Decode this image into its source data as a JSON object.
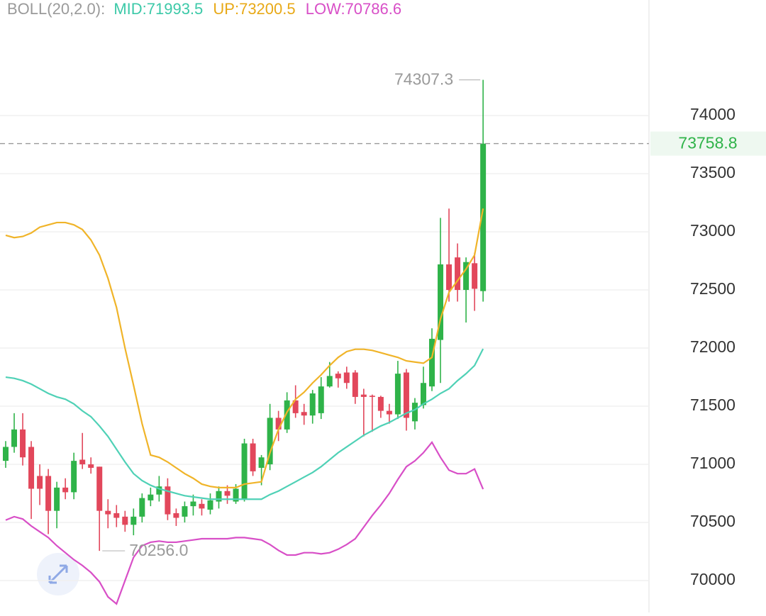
{
  "chart_data": {
    "type": "candlestick",
    "header": {
      "name": "BOLL(20,2.0):",
      "mid": "MID:71993.5",
      "up": "UP:73200.5",
      "low": "LOW:70786.6"
    },
    "open": [
      71030,
      71150,
      71300,
      71150,
      70900,
      70900,
      70600,
      70800,
      70760,
      71040,
      71000,
      70980,
      70600,
      70580,
      70550,
      70480,
      70550,
      70690,
      70740,
      70810,
      70580,
      70550,
      70640,
      70660,
      70610,
      70680,
      70770,
      70680,
      70700,
      71180,
      70970,
      71000,
      71400,
      71300,
      71550,
      71450,
      71420,
      71440,
      71670,
      71780,
      71790,
      71790,
      71600,
      71590,
      71580,
      71460,
      71430,
      71790,
      71370,
      71510,
      71670,
      72070,
      72720,
      72780,
      72500,
      72730,
      72490
    ],
    "high": [
      71200,
      71440,
      71440,
      71200,
      71000,
      70960,
      70850,
      70880,
      71100,
      71270,
      71060,
      70980,
      70700,
      70650,
      70600,
      70620,
      70750,
      70800,
      70900,
      70880,
      70620,
      70680,
      70740,
      70700,
      70750,
      70810,
      70820,
      70830,
      71220,
      71220,
      71080,
      71520,
      71460,
      71620,
      71680,
      71520,
      71640,
      71750,
      71880,
      71800,
      71840,
      71810,
      71650,
      71600,
      71590,
      71520,
      71890,
      71820,
      71570,
      71840,
      72170,
      73120,
      73200,
      72900,
      72780,
      72820,
      74307.3
    ],
    "low": [
      70970,
      71100,
      70990,
      70530,
      70650,
      70400,
      70450,
      70700,
      70700,
      70960,
      70920,
      70256,
      70450,
      70460,
      70420,
      70390,
      70500,
      70640,
      70680,
      70520,
      70470,
      70500,
      70560,
      70560,
      70570,
      70620,
      70660,
      70660,
      70680,
      70900,
      70820,
      70950,
      71200,
      71270,
      71400,
      71340,
      71350,
      71390,
      71660,
      71660,
      71650,
      71520,
      71240,
      71280,
      71400,
      71350,
      71390,
      71290,
      71300,
      71480,
      71630,
      71700,
      72400,
      72400,
      72220,
      72320,
      72400
    ],
    "close": [
      71150,
      71300,
      71060,
      70790,
      70790,
      70600,
      70800,
      70760,
      71030,
      71000,
      70970,
      70600,
      70570,
      70540,
      70480,
      70550,
      70710,
      70740,
      70810,
      70570,
      70540,
      70640,
      70680,
      70620,
      70690,
      70770,
      70730,
      70790,
      71180,
      70940,
      71060,
      71400,
      71300,
      71550,
      71440,
      71420,
      71610,
      71670,
      71760,
      71740,
      71700,
      71580,
      71580,
      71580,
      71460,
      71430,
      71780,
      71400,
      71530,
      71700,
      72080,
      72720,
      72500,
      72500,
      72740,
      72510,
      73758.8
    ],
    "up_color": "#2fb349",
    "down_color": "#e2475b",
    "series": [
      {
        "name": "UP",
        "color": "#f0b429",
        "values": [
          72970,
          72950,
          72960,
          72990,
          73040,
          73060,
          73080,
          73080,
          73060,
          73020,
          72930,
          72800,
          72600,
          72350,
          72000,
          71680,
          71350,
          71080,
          71060,
          71020,
          70970,
          70920,
          70880,
          70830,
          70810,
          70800,
          70800,
          70800,
          70830,
          70840,
          70850,
          71100,
          71300,
          71450,
          71560,
          71620,
          71700,
          71770,
          71850,
          71920,
          71970,
          71990,
          71990,
          71980,
          71960,
          71940,
          71920,
          71890,
          71880,
          71870,
          71920,
          72250,
          72480,
          72580,
          72680,
          72800,
          73200.5
        ]
      },
      {
        "name": "MID",
        "color": "#4fd1b6",
        "values": [
          71750,
          71740,
          71720,
          71690,
          71650,
          71610,
          71580,
          71560,
          71520,
          71460,
          71410,
          71330,
          71240,
          71130,
          71020,
          70920,
          70860,
          70820,
          70790,
          70770,
          70750,
          70730,
          70720,
          70710,
          70700,
          70700,
          70700,
          70700,
          70700,
          70700,
          70700,
          70740,
          70770,
          70810,
          70850,
          70890,
          70930,
          70980,
          71040,
          71100,
          71150,
          71200,
          71250,
          71290,
          71330,
          71360,
          71400,
          71440,
          71470,
          71520,
          71560,
          71610,
          71650,
          71720,
          71780,
          71850,
          71993.5
        ]
      },
      {
        "name": "LOW",
        "color": "#d84fc7",
        "values": [
          70520,
          70550,
          70530,
          70470,
          70420,
          70370,
          70300,
          70240,
          70180,
          70130,
          70070,
          69990,
          69860,
          69800,
          70000,
          70200,
          70300,
          70330,
          70340,
          70330,
          70330,
          70340,
          70350,
          70360,
          70360,
          70360,
          70360,
          70370,
          70370,
          70360,
          70350,
          70310,
          70260,
          70220,
          70220,
          70240,
          70240,
          70230,
          70240,
          70270,
          70310,
          70360,
          70460,
          70560,
          70650,
          70750,
          70870,
          70980,
          71030,
          71100,
          71190,
          71060,
          70950,
          70920,
          70920,
          70960,
          70786.6
        ]
      }
    ],
    "ylim": [
      69726,
      74994
    ],
    "yticks": [
      70000,
      70500,
      71000,
      71500,
      72000,
      72500,
      73000,
      73500,
      74000
    ],
    "grid": true,
    "high_label": 74307.3,
    "low_label": {
      "value": 70256,
      "label": "70256.0"
    },
    "last_price": 73758.8
  }
}
